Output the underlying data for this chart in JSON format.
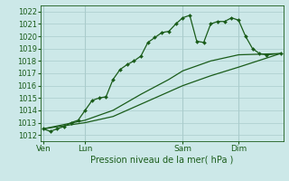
{
  "bg_color": "#cce8e8",
  "grid_color": "#aacccc",
  "line_color": "#1a5c1a",
  "marker_color": "#1a5c1a",
  "title": "Pression niveau de la mer( hPa )",
  "yticks": [
    1012,
    1013,
    1014,
    1015,
    1016,
    1017,
    1018,
    1019,
    1020,
    1021,
    1022
  ],
  "xtick_labels": [
    "Ven",
    "Lun",
    "Sam",
    "Dim"
  ],
  "xtick_positions": [
    0,
    3,
    10,
    14
  ],
  "ylim": [
    1011.5,
    1022.5
  ],
  "xlim": [
    -0.2,
    17.2
  ],
  "series1": [
    [
      0,
      1012.5
    ],
    [
      0.5,
      1012.3
    ],
    [
      1.0,
      1012.5
    ],
    [
      1.5,
      1012.7
    ],
    [
      2.0,
      1013.0
    ],
    [
      2.5,
      1013.2
    ],
    [
      3.0,
      1014.0
    ],
    [
      3.5,
      1014.8
    ],
    [
      4.0,
      1015.0
    ],
    [
      4.5,
      1015.1
    ],
    [
      5.0,
      1016.5
    ],
    [
      5.5,
      1017.3
    ],
    [
      6.0,
      1017.7
    ],
    [
      6.5,
      1018.0
    ],
    [
      7.0,
      1018.4
    ],
    [
      7.5,
      1019.5
    ],
    [
      8.0,
      1019.9
    ],
    [
      8.5,
      1020.3
    ],
    [
      9.0,
      1020.4
    ],
    [
      9.5,
      1021.0
    ],
    [
      10.0,
      1021.5
    ],
    [
      10.5,
      1021.7
    ],
    [
      11.0,
      1019.6
    ],
    [
      11.5,
      1019.5
    ],
    [
      12.0,
      1021.0
    ],
    [
      12.5,
      1021.2
    ],
    [
      13.0,
      1021.2
    ],
    [
      13.5,
      1021.5
    ],
    [
      14.0,
      1021.3
    ],
    [
      14.5,
      1020.0
    ],
    [
      15.0,
      1019.0
    ],
    [
      15.5,
      1018.6
    ],
    [
      16.0,
      1018.5
    ],
    [
      17.0,
      1018.6
    ]
  ],
  "series2": [
    [
      0,
      1012.5
    ],
    [
      3.0,
      1013.0
    ],
    [
      5.0,
      1013.5
    ],
    [
      7.0,
      1014.5
    ],
    [
      9.0,
      1015.5
    ],
    [
      10.0,
      1016.0
    ],
    [
      12.0,
      1016.8
    ],
    [
      14.0,
      1017.5
    ],
    [
      17.0,
      1018.6
    ]
  ],
  "series3": [
    [
      0,
      1012.5
    ],
    [
      3.0,
      1013.2
    ],
    [
      5.0,
      1014.0
    ],
    [
      7.0,
      1015.3
    ],
    [
      9.0,
      1016.5
    ],
    [
      10.0,
      1017.2
    ],
    [
      12.0,
      1018.0
    ],
    [
      14.0,
      1018.5
    ],
    [
      17.0,
      1018.6
    ]
  ]
}
